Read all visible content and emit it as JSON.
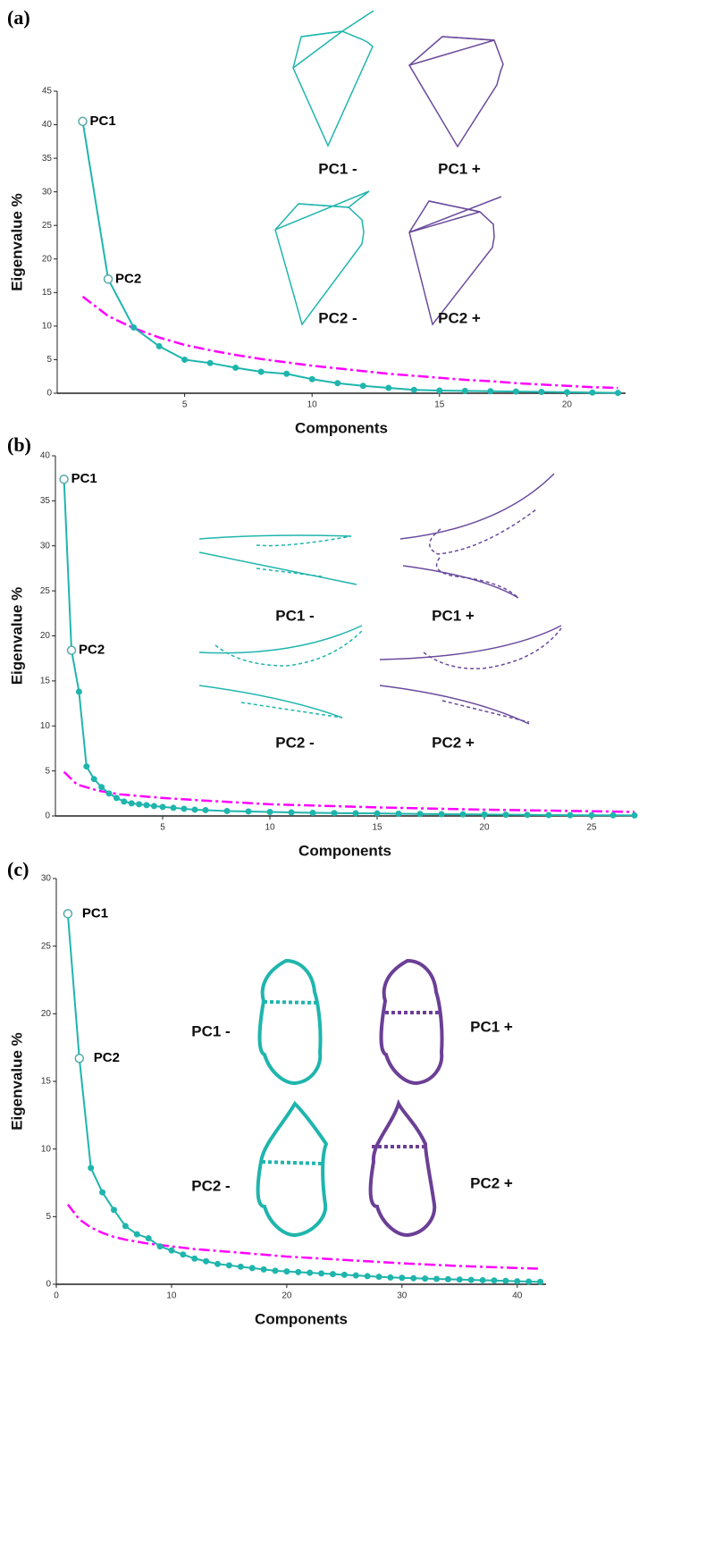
{
  "chart_data": [
    {
      "type": "line",
      "panel": "(a)",
      "xlabel": "Components",
      "ylabel": "Eigenvalue %",
      "xlim": [
        0,
        22.3
      ],
      "ylim": [
        0,
        45
      ],
      "xticks": [
        5,
        10,
        15,
        20
      ],
      "yticks": [
        0,
        5,
        10,
        15,
        20,
        25,
        30,
        35,
        40,
        45
      ],
      "annotations": [
        "PC1",
        "PC2"
      ],
      "shape_labels": [
        "PC1 -",
        "PC1 +",
        "PC2 -",
        "PC2 +"
      ],
      "series": [
        {
          "color": "#1fb5ad",
          "markers": true,
          "style": "solid",
          "x": [
            1,
            2,
            3,
            4,
            5,
            6,
            7,
            8,
            9,
            10,
            11,
            12,
            13,
            14,
            15,
            16,
            17,
            18,
            19,
            20,
            21,
            22
          ],
          "values": [
            40.5,
            17,
            9.8,
            7,
            5,
            4.5,
            3.8,
            3.2,
            2.9,
            2.1,
            1.5,
            1.1,
            0.8,
            0.5,
            0.4,
            0.35,
            0.3,
            0.25,
            0.2,
            0.15,
            0.1,
            0.05
          ]
        },
        {
          "color": "#ff00ff",
          "markers": false,
          "style": "dashdot",
          "x": [
            1,
            2,
            3,
            4,
            5,
            6,
            7,
            8,
            9,
            10,
            11,
            12,
            13,
            14,
            15,
            16,
            17,
            18,
            19,
            20,
            21,
            22
          ],
          "values": [
            14.4,
            11.5,
            9.7,
            8.3,
            7.2,
            6.4,
            5.7,
            5.1,
            4.6,
            4.1,
            3.7,
            3.3,
            2.9,
            2.6,
            2.3,
            2.0,
            1.8,
            1.5,
            1.3,
            1.1,
            0.9,
            0.8
          ]
        }
      ]
    },
    {
      "type": "line",
      "panel": "(b)",
      "xlabel": "Components",
      "ylabel": "Eigenvalue %",
      "xlim": [
        0,
        27
      ],
      "ylim": [
        0,
        40
      ],
      "xticks": [
        5,
        10,
        15,
        20,
        25
      ],
      "yticks": [
        0,
        5,
        10,
        15,
        20,
        25,
        30,
        35,
        40
      ],
      "annotations": [
        "PC1",
        "PC2"
      ],
      "shape_labels": [
        "PC1 -",
        "PC1 +",
        "PC2 -",
        "PC2 +"
      ],
      "series": [
        {
          "color": "#1fb5ad",
          "markers": true,
          "style": "solid",
          "x": [
            0.4,
            0.75,
            1.1,
            1.45,
            1.8,
            2.15,
            2.5,
            2.85,
            3.2,
            3.55,
            3.9,
            4.25,
            4.6,
            5,
            5.5,
            6,
            6.5,
            7,
            8,
            9,
            10,
            11,
            12,
            13,
            14,
            15,
            16,
            17,
            18,
            19,
            20,
            21,
            22,
            23,
            24,
            25,
            26,
            27
          ],
          "values": [
            37.4,
            18.4,
            13.8,
            5.5,
            4.1,
            3.2,
            2.5,
            2.0,
            1.6,
            1.4,
            1.3,
            1.2,
            1.1,
            1.0,
            0.9,
            0.8,
            0.7,
            0.65,
            0.55,
            0.5,
            0.45,
            0.4,
            0.35,
            0.32,
            0.3,
            0.28,
            0.25,
            0.22,
            0.2,
            0.18,
            0.16,
            0.14,
            0.12,
            0.1,
            0.09,
            0.08,
            0.07,
            0.06
          ]
        },
        {
          "color": "#ff00ff",
          "markers": false,
          "style": "dashdot",
          "x": [
            0.4,
            1,
            2,
            3,
            5,
            7,
            10,
            15,
            20,
            27
          ],
          "values": [
            4.9,
            3.5,
            2.8,
            2.4,
            2.0,
            1.7,
            1.3,
            0.95,
            0.7,
            0.45
          ]
        }
      ]
    },
    {
      "type": "line",
      "panel": "(c)",
      "xlabel": "Components",
      "ylabel": "Eigenvalue %",
      "xlim": [
        0,
        42.5
      ],
      "ylim": [
        0,
        30
      ],
      "xticks": [
        0,
        10,
        20,
        30,
        40
      ],
      "yticks": [
        0,
        5,
        10,
        15,
        20,
        25,
        30
      ],
      "annotations": [
        "PC1",
        "PC2"
      ],
      "shape_labels": [
        "PC1 -",
        "PC1 +",
        "PC2 -",
        "PC2 +"
      ],
      "series": [
        {
          "color": "#1fb5ad",
          "markers": true,
          "style": "solid",
          "x": [
            1,
            2,
            3,
            4,
            5,
            6,
            7,
            8,
            9,
            10,
            11,
            12,
            13,
            14,
            15,
            16,
            17,
            18,
            19,
            20,
            21,
            22,
            23,
            24,
            25,
            26,
            27,
            28,
            29,
            30,
            31,
            32,
            33,
            34,
            35,
            36,
            37,
            38,
            39,
            40,
            41,
            42
          ],
          "values": [
            27.4,
            16.7,
            8.6,
            6.8,
            5.5,
            4.3,
            3.7,
            3.4,
            2.8,
            2.5,
            2.2,
            1.9,
            1.7,
            1.5,
            1.4,
            1.3,
            1.2,
            1.1,
            1.0,
            0.95,
            0.9,
            0.85,
            0.8,
            0.75,
            0.7,
            0.65,
            0.6,
            0.55,
            0.5,
            0.48,
            0.45,
            0.42,
            0.4,
            0.37,
            0.35,
            0.32,
            0.3,
            0.28,
            0.25,
            0.22,
            0.2,
            0.18
          ]
        },
        {
          "color": "#ff00ff",
          "markers": false,
          "style": "dashdot",
          "x": [
            1,
            2,
            3,
            4,
            5,
            6,
            8,
            10,
            12,
            15,
            20,
            25,
            30,
            35,
            40,
            42
          ],
          "values": [
            5.9,
            4.8,
            4.2,
            3.8,
            3.5,
            3.3,
            3.0,
            2.8,
            2.6,
            2.4,
            2.05,
            1.8,
            1.55,
            1.35,
            1.2,
            1.15
          ]
        }
      ]
    }
  ]
}
